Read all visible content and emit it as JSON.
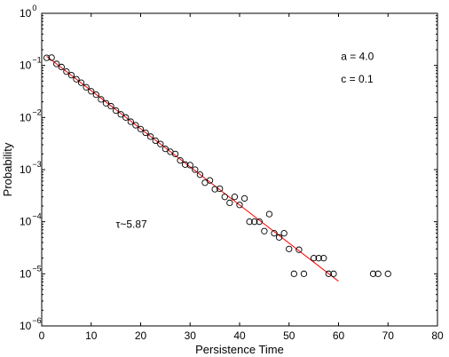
{
  "chart_data": {
    "type": "scatter",
    "xlabel": "Persistence Time",
    "ylabel": "Probability",
    "xlim": [
      0,
      80
    ],
    "ylim": [
      1e-06,
      1
    ],
    "y_scale": "log",
    "grid": false,
    "x_ticks": [
      0,
      10,
      20,
      30,
      40,
      50,
      60,
      70,
      80
    ],
    "y_ticks": [
      {
        "value": 1e-06,
        "base": "10",
        "exp": "−6"
      },
      {
        "value": 1e-05,
        "base": "10",
        "exp": "−5"
      },
      {
        "value": 0.0001,
        "base": "10",
        "exp": "−4"
      },
      {
        "value": 0.001,
        "base": "10",
        "exp": "−3"
      },
      {
        "value": 0.01,
        "base": "10",
        "exp": "−2"
      },
      {
        "value": 0.1,
        "base": "10",
        "exp": "−1"
      },
      {
        "value": 1,
        "base": "10",
        "exp": "0"
      }
    ],
    "series": [
      {
        "marker": "open-circle",
        "color": "#000000",
        "points": [
          [
            1,
            0.14
          ],
          [
            2,
            0.141
          ],
          [
            3,
            0.107
          ],
          [
            4,
            0.0932
          ],
          [
            5,
            0.0761
          ],
          [
            6,
            0.065
          ],
          [
            7,
            0.0543
          ],
          [
            8,
            0.0465
          ],
          [
            9,
            0.0381
          ],
          [
            10,
            0.0319
          ],
          [
            11,
            0.0274
          ],
          [
            12,
            0.0223
          ],
          [
            13,
            0.0188
          ],
          [
            14,
            0.0165
          ],
          [
            15,
            0.0136
          ],
          [
            16,
            0.0115
          ],
          [
            17,
            0.01
          ],
          [
            18,
            0.0083
          ],
          [
            19,
            0.0071
          ],
          [
            20,
            0.006
          ],
          [
            21,
            0.0051
          ],
          [
            22,
            0.0043
          ],
          [
            23,
            0.0036
          ],
          [
            24,
            0.0031
          ],
          [
            25,
            0.0025
          ],
          [
            26,
            0.0022
          ],
          [
            27,
            0.002
          ],
          [
            28,
            0.0015
          ],
          [
            29,
            0.00125
          ],
          [
            30,
            0.00122
          ],
          [
            31,
            0.001
          ],
          [
            32,
            0.0008
          ],
          [
            33,
            0.00056
          ],
          [
            34,
            0.00062
          ],
          [
            35,
            0.00042
          ],
          [
            36,
            0.00043
          ],
          [
            37,
            0.0003
          ],
          [
            38,
            0.00023
          ],
          [
            39,
            0.0003
          ],
          [
            40,
            0.00021
          ],
          [
            41,
            0.00028
          ],
          [
            42,
            0.0001
          ],
          [
            43,
            0.0001
          ],
          [
            44,
            0.0001
          ],
          [
            45,
            6.6e-05
          ],
          [
            46,
            0.00014
          ],
          [
            47,
            6e-05
          ],
          [
            48,
            5e-05
          ],
          [
            49,
            6e-05
          ],
          [
            50,
            3e-05
          ],
          [
            51,
            1e-05
          ],
          [
            52,
            2.9e-05
          ],
          [
            53,
            1e-05
          ],
          [
            55,
            2e-05
          ],
          [
            56,
            2e-05
          ],
          [
            57,
            2e-05
          ],
          [
            58,
            1e-05
          ],
          [
            59,
            1e-05
          ],
          [
            67,
            1e-05
          ],
          [
            68,
            1e-05
          ],
          [
            70,
            1e-05
          ]
        ]
      }
    ],
    "fit_line": {
      "color": "#ff0000",
      "points": [
        [
          1,
          0.15
        ],
        [
          60,
          7.2e-06
        ]
      ]
    },
    "annotations": [
      {
        "text": "a = 4.0",
        "x": 60.5,
        "y": 0.15
      },
      {
        "text": "c = 0.1",
        "x": 60.5,
        "y": 0.055
      },
      {
        "text": "τ~5.87",
        "x": 15,
        "y": 9e-05
      }
    ]
  }
}
